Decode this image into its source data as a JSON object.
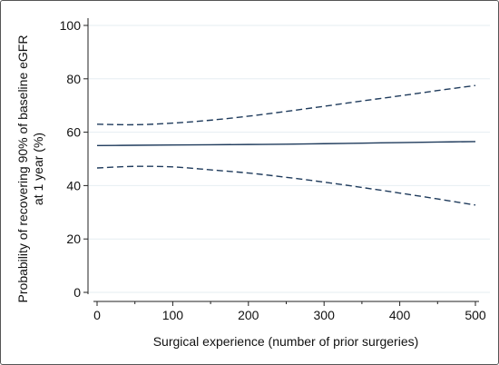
{
  "chart_data": {
    "type": "line",
    "title": "",
    "xlabel": "Surgical experience (number of prior surgeries)",
    "ylabel_lines": [
      "Probability of recovering 90% of baseline eGFR",
      "at 1 year (%)"
    ],
    "xlim": [
      0,
      500
    ],
    "ylim": [
      0,
      100
    ],
    "x_ticks": [
      "0",
      "100",
      "200",
      "300",
      "400",
      "500"
    ],
    "y_ticks": [
      "0",
      "20",
      "40",
      "60",
      "80",
      "100"
    ],
    "x_minor_ticks": [
      50,
      150,
      250,
      350,
      450
    ],
    "grid": true,
    "legend": "none",
    "colors": {
      "line": "#1f3b5c",
      "grid": "#e6eef2",
      "axis": "#222222"
    },
    "x": [
      0,
      50,
      100,
      150,
      200,
      250,
      300,
      350,
      400,
      450,
      500
    ],
    "series": [
      {
        "style": "solid",
        "values": [
          55.0,
          55.1,
          55.2,
          55.3,
          55.4,
          55.5,
          55.7,
          55.9,
          56.1,
          56.3,
          56.5
        ]
      },
      {
        "style": "dashed",
        "values": [
          63.0,
          62.8,
          63.4,
          64.5,
          66.0,
          67.8,
          69.7,
          71.7,
          73.6,
          75.6,
          77.5
        ]
      },
      {
        "style": "dashed",
        "values": [
          46.6,
          47.2,
          47.0,
          45.9,
          44.7,
          43.1,
          41.3,
          39.3,
          37.2,
          35.0,
          32.7
        ]
      }
    ]
  }
}
